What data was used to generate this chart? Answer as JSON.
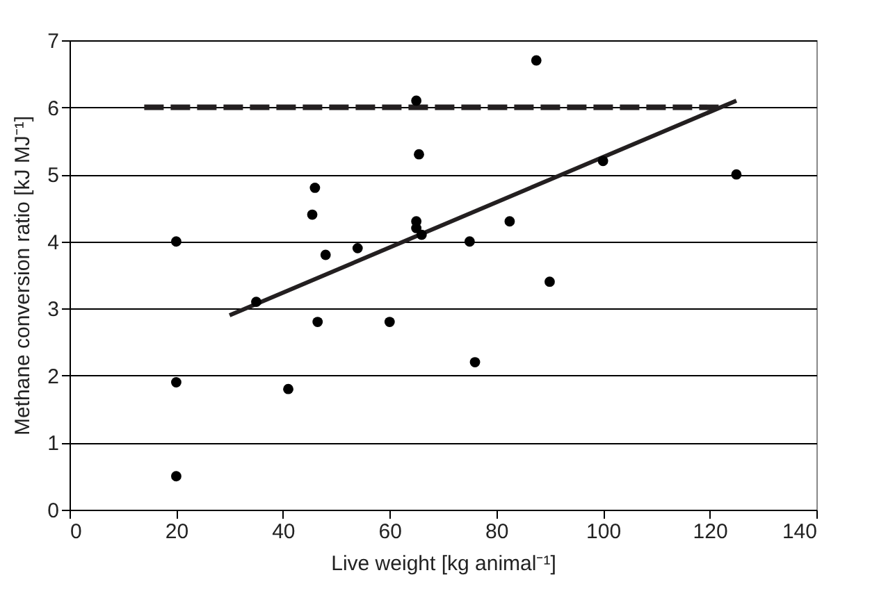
{
  "chart_data": {
    "type": "scatter",
    "xlabel": "Live weight [kg animal⁻¹]",
    "ylabel": "Methane conversion ratio [kJ MJ⁻¹]",
    "xlim": [
      0,
      140
    ],
    "xticks": [
      0,
      20,
      40,
      60,
      80,
      100,
      120,
      140
    ],
    "ylim": [
      0,
      7
    ],
    "yticks": [
      0,
      1,
      2,
      3,
      4,
      5,
      6,
      7
    ],
    "grid": "y",
    "series": [
      {
        "marker": "circle",
        "color": "#000000",
        "x": [
          20,
          20,
          20,
          35,
          41,
          45.5,
          46,
          46.5,
          48,
          54,
          60,
          65,
          65,
          65,
          65.5,
          66,
          75,
          76,
          82.5,
          87.5,
          90,
          100,
          125
        ],
        "values": [
          4.0,
          1.9,
          0.5,
          3.1,
          1.8,
          4.4,
          4.8,
          2.8,
          3.8,
          3.9,
          2.8,
          6.1,
          4.3,
          4.2,
          5.3,
          4.1,
          4.0,
          2.2,
          4.3,
          6.7,
          3.4,
          5.2,
          5.0
        ]
      },
      {
        "type": "line",
        "color": "#231f20",
        "line_style": "solid",
        "x": [
          30,
          125
        ],
        "values": [
          2.9,
          6.1
        ]
      },
      {
        "type": "line",
        "color": "#231f20",
        "line_style": "dashed",
        "x": [
          14,
          122
        ],
        "values": [
          6,
          6
        ]
      }
    ]
  }
}
